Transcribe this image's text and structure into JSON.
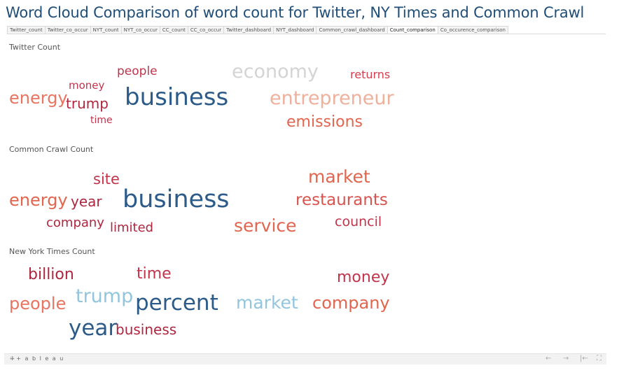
{
  "title": "Word Cloud Comparison of word count for Twitter, NY Times and Common Crawl",
  "tabs": [
    {
      "label": "Twitter_count"
    },
    {
      "label": "Twitter_co_occur"
    },
    {
      "label": "NYT_count"
    },
    {
      "label": "NYT_co_occur"
    },
    {
      "label": "CC_count"
    },
    {
      "label": "CC_co_occur"
    },
    {
      "label": "Twitter_dashboard"
    },
    {
      "label": "NYT_dashboard"
    },
    {
      "label": "Common_crawl_dashboard"
    },
    {
      "label": "Count_comparison",
      "active": true
    },
    {
      "label": "Co_occurence_comparison"
    }
  ],
  "sections": {
    "twitter": {
      "label": "Twitter Count",
      "words": [
        {
          "text": "people",
          "color": "#c2344c"
        },
        {
          "text": "economy",
          "color": "#d4d4d4"
        },
        {
          "text": "returns",
          "color": "#d2414f"
        },
        {
          "text": "money",
          "color": "#c2344c"
        },
        {
          "text": "energy",
          "color": "#e87461"
        },
        {
          "text": "trump",
          "color": "#b0263f"
        },
        {
          "text": "business",
          "color": "#2c5b8a"
        },
        {
          "text": "entrepreneur",
          "color": "#efb09c"
        },
        {
          "text": "time",
          "color": "#c2344c"
        },
        {
          "text": "emissions",
          "color": "#e2654f"
        }
      ]
    },
    "common_crawl": {
      "label": "Common Crawl Count",
      "words": [
        {
          "text": "site",
          "color": "#c2344c"
        },
        {
          "text": "market",
          "color": "#e2654f"
        },
        {
          "text": "energy",
          "color": "#e2654f"
        },
        {
          "text": "year",
          "color": "#b0263f"
        },
        {
          "text": "business",
          "color": "#2c5b8a"
        },
        {
          "text": "restaurants",
          "color": "#d9534f"
        },
        {
          "text": "company",
          "color": "#b0263f"
        },
        {
          "text": "limited",
          "color": "#b0263f"
        },
        {
          "text": "service",
          "color": "#e2654f"
        },
        {
          "text": "council",
          "color": "#c2344c"
        }
      ]
    },
    "nyt": {
      "label": "New York Times Count",
      "words": [
        {
          "text": "billion",
          "color": "#b0263f"
        },
        {
          "text": "time",
          "color": "#c2344c"
        },
        {
          "text": "money",
          "color": "#c2344c"
        },
        {
          "text": "people",
          "color": "#e87461"
        },
        {
          "text": "trump",
          "color": "#92c5de"
        },
        {
          "text": "percent",
          "color": "#2c5b8a"
        },
        {
          "text": "market",
          "color": "#92c5de"
        },
        {
          "text": "company",
          "color": "#e2654f"
        },
        {
          "text": "year",
          "color": "#2c5b8a"
        },
        {
          "text": "business",
          "color": "#b0263f"
        }
      ]
    }
  },
  "footer": {
    "logo": "+ a b l e a u",
    "nav": {
      "back": "←",
      "forward": "→",
      "first": "|←",
      "fullscreen": "⛶"
    }
  }
}
